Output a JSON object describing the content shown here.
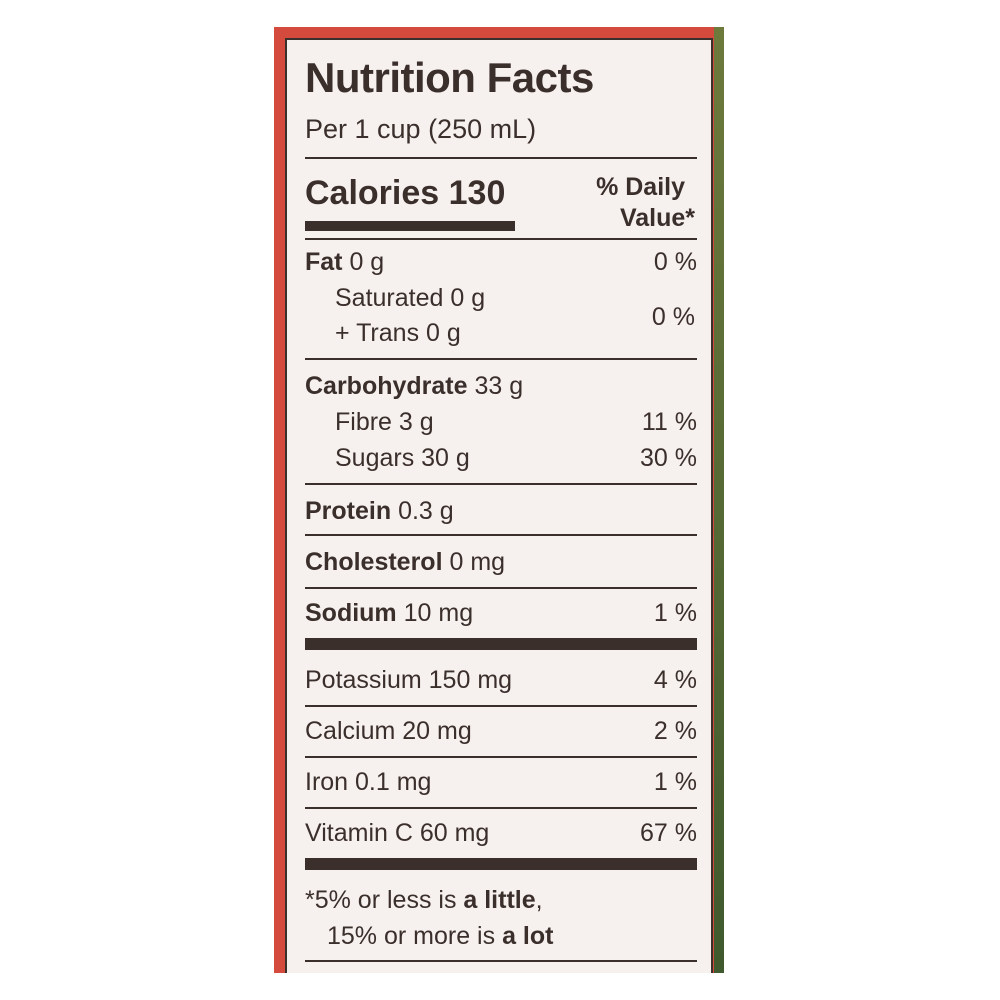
{
  "label": {
    "title": "Nutrition Facts",
    "serving": "Per 1 cup (250 mL)",
    "calories_label": "Calories",
    "calories_value": "130",
    "daily_value_line1": "% Daily",
    "daily_value_line2": "Value*",
    "fat": {
      "name": "Fat",
      "amount": "0 g",
      "dv": "0 %"
    },
    "saturated": {
      "text": "Saturated 0 g"
    },
    "trans": {
      "text": "+ Trans 0 g",
      "dv": "0 %"
    },
    "carbohydrate": {
      "name": "Carbohydrate",
      "amount": "33 g"
    },
    "fibre": {
      "text": "Fibre 3 g",
      "dv": "11 %"
    },
    "sugars": {
      "text": "Sugars 30 g",
      "dv": "30 %"
    },
    "protein": {
      "name": "Protein",
      "amount": "0.3 g"
    },
    "cholesterol": {
      "name": "Cholesterol",
      "amount": "0 mg"
    },
    "sodium": {
      "name": "Sodium",
      "amount": "10 mg",
      "dv": "1 %"
    },
    "potassium": {
      "text": "Potassium 150 mg",
      "dv": "4 %"
    },
    "calcium": {
      "text": "Calcium 20 mg",
      "dv": "2 %"
    },
    "iron": {
      "text": "Iron 0.1 mg",
      "dv": "1 %"
    },
    "vitamin_c": {
      "text": "Vitamin C 60 mg",
      "dv": "67 %"
    },
    "footnote": {
      "line1_prefix": "*5% or less is ",
      "line1_bold": "a little",
      "line1_suffix": ",",
      "line2_prefix": "15% or more is ",
      "line2_bold": "a lot"
    }
  },
  "colors": {
    "frame_red": "#d44a3c",
    "label_background": "#f6f1ef",
    "ink": "#3b2f2b"
  }
}
